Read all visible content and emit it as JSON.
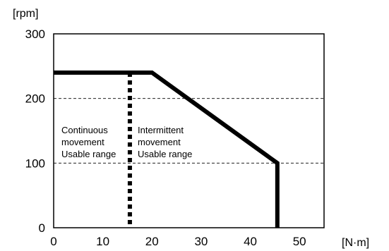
{
  "chart_data": {
    "type": "line",
    "ylabel": "[rpm]",
    "xlabel": "[N·m]",
    "xlim": [
      0,
      55
    ],
    "ylim": [
      0,
      300
    ],
    "x_ticks": [
      "0",
      "10",
      "20",
      "30",
      "40",
      "50"
    ],
    "y_ticks": [
      "0",
      "100",
      "200",
      "300"
    ],
    "grid": "dashed horizontal at 100 and 200",
    "series": [
      {
        "style": "solid",
        "points": [
          [
            0,
            240
          ],
          [
            20,
            240
          ],
          [
            45.5,
            100
          ],
          [
            45.5,
            0
          ]
        ]
      },
      {
        "style": "dotted",
        "points": [
          [
            15.5,
            240
          ],
          [
            15.5,
            0
          ]
        ]
      }
    ],
    "annotations": [
      {
        "lines": [
          "Continuous",
          "movement",
          "Usable range"
        ]
      },
      {
        "lines": [
          "Intermittent",
          "movement",
          "Usable range"
        ]
      }
    ]
  }
}
